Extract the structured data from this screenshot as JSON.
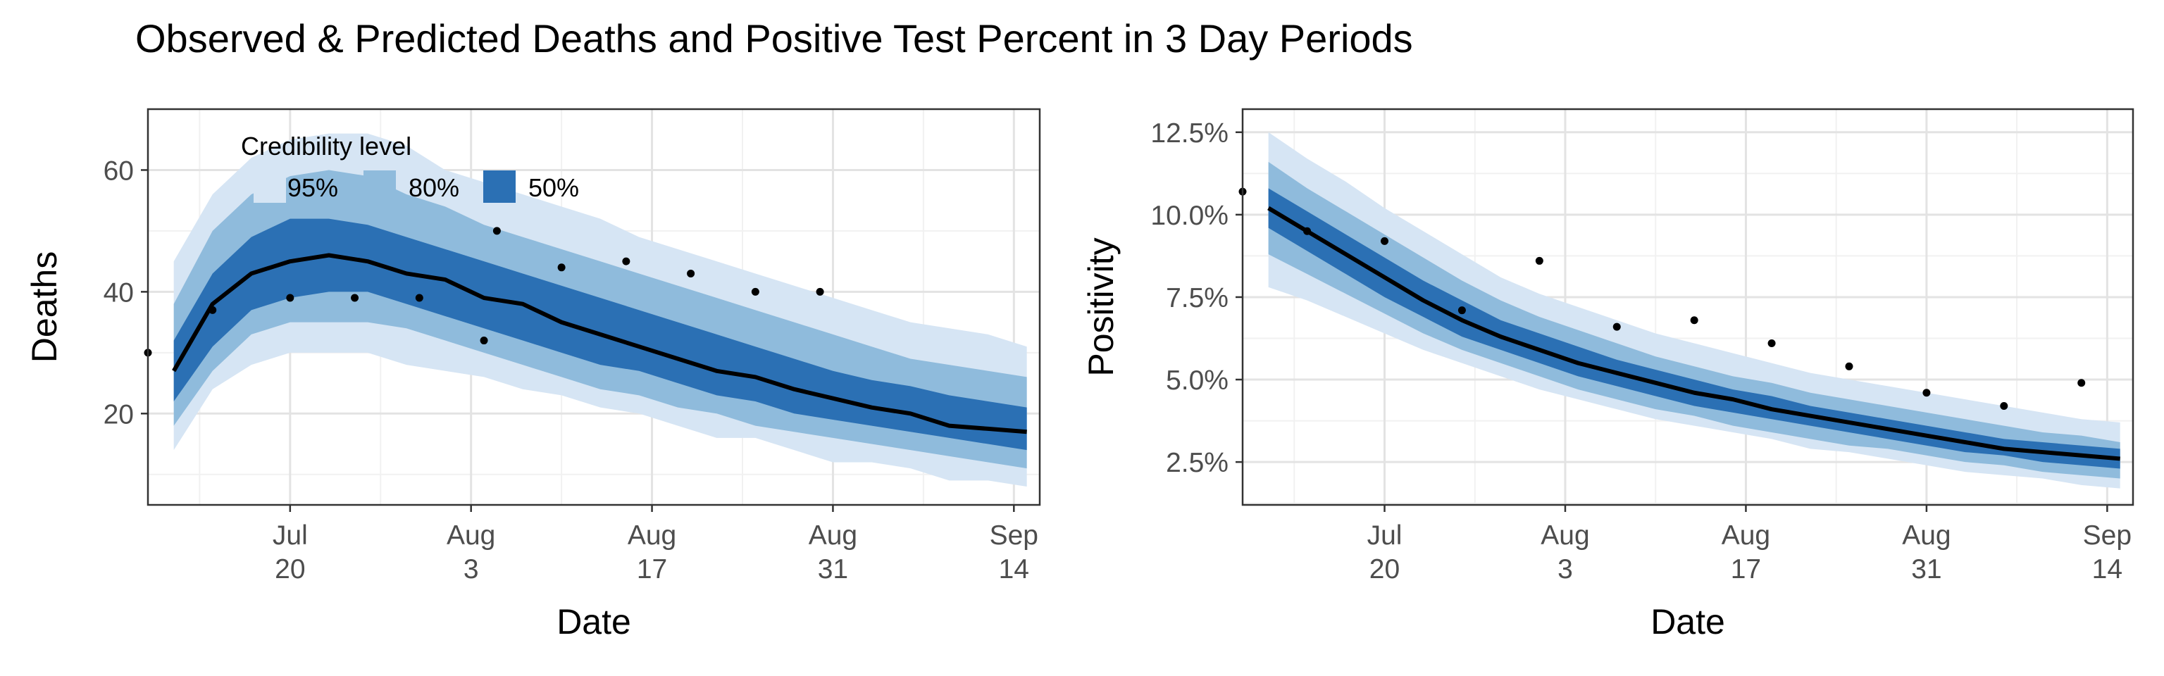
{
  "figure": {
    "title": "Observed & Predicted Deaths and Positive Test Percent in 3 Day Periods"
  },
  "colors": {
    "band_95": "#d6e5f4",
    "band_80": "#8fbbdc",
    "band_50": "#2b70b4",
    "median_line": "#000000",
    "points": "#000000",
    "grid_major": "#e3e3e3",
    "grid_minor": "#f1f1f1",
    "panel_border": "#333333"
  },
  "chart_data": [
    {
      "type": "line",
      "xlabel": "Date",
      "ylabel": "Deaths",
      "x_domain": [
        "2020-07-09",
        "2020-09-16"
      ],
      "ylim": [
        5,
        70
      ],
      "x_ticks": [
        {
          "date": "2020-07-20",
          "line1": "Jul",
          "line2": "20"
        },
        {
          "date": "2020-08-03",
          "line1": "Aug",
          "line2": "3"
        },
        {
          "date": "2020-08-17",
          "line1": "Aug",
          "line2": "17"
        },
        {
          "date": "2020-08-31",
          "line1": "Aug",
          "line2": "31"
        },
        {
          "date": "2020-09-14",
          "line1": "Sep",
          "line2": "14"
        }
      ],
      "y_ticks": [
        {
          "value": 20,
          "label": "20"
        },
        {
          "value": 40,
          "label": "40"
        },
        {
          "value": 60,
          "label": "60"
        }
      ],
      "grid": true,
      "legend": {
        "title": "Credibility level",
        "placement": "top-left",
        "items": [
          {
            "label": "95%",
            "band": "band_95"
          },
          {
            "label": "80%",
            "band": "band_80"
          },
          {
            "label": "50%",
            "band": "band_50"
          }
        ]
      },
      "dates": [
        "2020-07-11",
        "2020-07-14",
        "2020-07-17",
        "2020-07-20",
        "2020-07-23",
        "2020-07-26",
        "2020-07-29",
        "2020-08-01",
        "2020-08-04",
        "2020-08-07",
        "2020-08-10",
        "2020-08-13",
        "2020-08-16",
        "2020-08-19",
        "2020-08-22",
        "2020-08-25",
        "2020-08-28",
        "2020-08-31",
        "2020-09-03",
        "2020-09-06",
        "2020-09-09",
        "2020-09-12",
        "2020-09-15"
      ],
      "median": [
        27,
        38,
        43,
        45,
        46,
        45,
        43,
        42,
        39,
        38,
        35,
        33,
        31,
        29,
        27,
        26,
        24,
        22.5,
        21,
        20,
        18,
        17.5,
        17
      ],
      "lower_50": [
        22,
        31,
        37,
        39,
        40,
        40,
        38,
        36,
        34,
        32,
        30,
        28,
        27,
        25,
        23,
        22,
        20,
        19,
        18,
        17,
        16,
        15,
        14
      ],
      "upper_50": [
        32,
        43,
        49,
        52,
        52,
        51,
        49,
        47,
        45,
        43,
        41,
        39,
        37,
        35,
        33,
        31,
        29,
        27,
        25.5,
        24.5,
        23,
        22,
        21
      ],
      "lower_80": [
        18,
        27,
        33,
        35,
        35,
        35,
        34,
        32,
        30,
        28,
        26,
        24,
        23,
        21,
        20,
        18,
        17,
        16,
        15,
        14,
        13,
        12,
        11
      ],
      "upper_80": [
        38,
        50,
        56,
        59,
        60,
        59,
        56,
        54,
        51,
        49,
        47,
        45,
        43,
        41,
        39,
        37,
        35,
        33,
        31,
        29,
        28,
        27,
        26
      ],
      "lower_95": [
        14,
        24,
        28,
        30,
        30,
        30,
        28,
        27,
        26,
        24,
        23,
        21,
        20,
        18,
        16,
        16,
        14,
        12,
        12,
        11,
        9,
        9,
        8
      ],
      "upper_95": [
        45,
        56,
        62,
        65,
        66,
        66,
        64,
        60,
        58,
        56,
        54,
        52,
        49,
        47,
        45,
        43,
        41,
        39,
        37,
        35,
        34,
        33,
        31
      ],
      "observed": [
        {
          "date": "2020-07-09",
          "value": 30
        },
        {
          "date": "2020-07-14",
          "value": 37
        },
        {
          "date": "2020-07-20",
          "value": 39
        },
        {
          "date": "2020-07-25",
          "value": 39
        },
        {
          "date": "2020-07-30",
          "value": 39
        },
        {
          "date": "2020-08-04",
          "value": 32
        },
        {
          "date": "2020-08-05",
          "value": 50
        },
        {
          "date": "2020-08-10",
          "value": 44
        },
        {
          "date": "2020-08-15",
          "value": 45
        },
        {
          "date": "2020-08-20",
          "value": 43
        },
        {
          "date": "2020-08-25",
          "value": 40
        },
        {
          "date": "2020-08-30",
          "value": 40
        }
      ]
    },
    {
      "type": "line",
      "xlabel": "Date",
      "ylabel": "Positivity",
      "x_domain": [
        "2020-07-09",
        "2020-09-16"
      ],
      "ylim": [
        0.012,
        0.132
      ],
      "x_ticks": [
        {
          "date": "2020-07-20",
          "line1": "Jul",
          "line2": "20"
        },
        {
          "date": "2020-08-03",
          "line1": "Aug",
          "line2": "3"
        },
        {
          "date": "2020-08-17",
          "line1": "Aug",
          "line2": "17"
        },
        {
          "date": "2020-08-31",
          "line1": "Aug",
          "line2": "31"
        },
        {
          "date": "2020-09-14",
          "line1": "Sep",
          "line2": "14"
        }
      ],
      "y_ticks": [
        {
          "value": 0.025,
          "label": "2.5%"
        },
        {
          "value": 0.05,
          "label": "5.0%"
        },
        {
          "value": 0.075,
          "label": "7.5%"
        },
        {
          "value": 0.1,
          "label": "10.0%"
        },
        {
          "value": 0.125,
          "label": "12.5%"
        }
      ],
      "grid": true,
      "dates": [
        "2020-07-11",
        "2020-07-14",
        "2020-07-17",
        "2020-07-20",
        "2020-07-23",
        "2020-07-26",
        "2020-07-29",
        "2020-08-01",
        "2020-08-04",
        "2020-08-07",
        "2020-08-10",
        "2020-08-13",
        "2020-08-16",
        "2020-08-19",
        "2020-08-22",
        "2020-08-25",
        "2020-08-28",
        "2020-08-31",
        "2020-09-03",
        "2020-09-06",
        "2020-09-09",
        "2020-09-12",
        "2020-09-15"
      ],
      "median": [
        0.102,
        0.095,
        0.088,
        0.081,
        0.074,
        0.068,
        0.063,
        0.059,
        0.055,
        0.052,
        0.049,
        0.046,
        0.044,
        0.041,
        0.039,
        0.037,
        0.035,
        0.033,
        0.031,
        0.029,
        0.028,
        0.027,
        0.026
      ],
      "lower_50": [
        0.096,
        0.089,
        0.082,
        0.075,
        0.069,
        0.063,
        0.059,
        0.055,
        0.051,
        0.048,
        0.045,
        0.042,
        0.04,
        0.038,
        0.036,
        0.034,
        0.032,
        0.03,
        0.028,
        0.027,
        0.025,
        0.024,
        0.023
      ],
      "upper_50": [
        0.108,
        0.101,
        0.094,
        0.087,
        0.08,
        0.074,
        0.068,
        0.064,
        0.06,
        0.056,
        0.053,
        0.05,
        0.047,
        0.045,
        0.042,
        0.04,
        0.038,
        0.036,
        0.034,
        0.032,
        0.031,
        0.03,
        0.029
      ],
      "lower_80": [
        0.088,
        0.082,
        0.076,
        0.07,
        0.064,
        0.059,
        0.055,
        0.051,
        0.047,
        0.044,
        0.041,
        0.039,
        0.036,
        0.034,
        0.032,
        0.03,
        0.029,
        0.027,
        0.025,
        0.024,
        0.022,
        0.021,
        0.02
      ],
      "upper_80": [
        0.116,
        0.108,
        0.101,
        0.094,
        0.087,
        0.08,
        0.074,
        0.069,
        0.065,
        0.061,
        0.057,
        0.054,
        0.051,
        0.049,
        0.046,
        0.044,
        0.042,
        0.04,
        0.038,
        0.036,
        0.034,
        0.033,
        0.031
      ],
      "lower_95": [
        0.078,
        0.074,
        0.069,
        0.064,
        0.059,
        0.055,
        0.051,
        0.047,
        0.044,
        0.041,
        0.038,
        0.036,
        0.034,
        0.032,
        0.029,
        0.028,
        0.026,
        0.024,
        0.022,
        0.021,
        0.02,
        0.018,
        0.017
      ],
      "upper_95": [
        0.125,
        0.117,
        0.11,
        0.102,
        0.095,
        0.088,
        0.081,
        0.076,
        0.072,
        0.068,
        0.064,
        0.061,
        0.058,
        0.055,
        0.052,
        0.05,
        0.048,
        0.046,
        0.044,
        0.042,
        0.04,
        0.038,
        0.037
      ],
      "observed": [
        {
          "date": "2020-07-09",
          "value": 0.107
        },
        {
          "date": "2020-07-14",
          "value": 0.095
        },
        {
          "date": "2020-07-20",
          "value": 0.092
        },
        {
          "date": "2020-07-26",
          "value": 0.071
        },
        {
          "date": "2020-08-01",
          "value": 0.086
        },
        {
          "date": "2020-08-07",
          "value": 0.066
        },
        {
          "date": "2020-08-13",
          "value": 0.068
        },
        {
          "date": "2020-08-19",
          "value": 0.061
        },
        {
          "date": "2020-08-25",
          "value": 0.054
        },
        {
          "date": "2020-08-31",
          "value": 0.046
        },
        {
          "date": "2020-09-06",
          "value": 0.042
        },
        {
          "date": "2020-09-12",
          "value": 0.049
        }
      ]
    }
  ]
}
